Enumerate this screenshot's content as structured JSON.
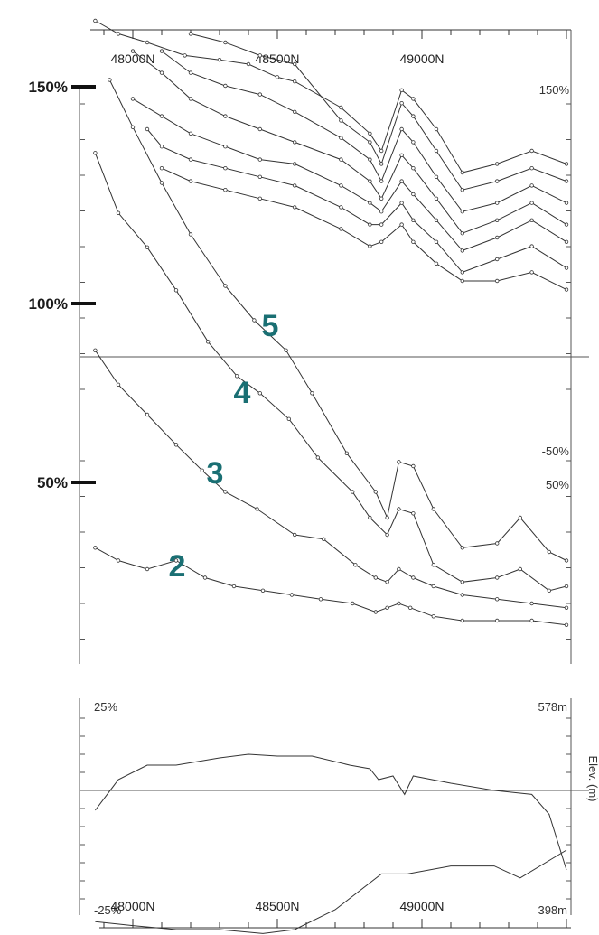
{
  "chart_data": [
    {
      "type": "line",
      "x_ticks": [
        "48000N",
        "48500N",
        "49000N"
      ],
      "left_labels": [
        "150%",
        "100%",
        "50%"
      ],
      "upper_right_labels": [
        "150%",
        "-50%"
      ],
      "lower_right_labels": [
        "50%"
      ],
      "curve_labels": [
        "5",
        "4",
        "3",
        "2"
      ],
      "series": [
        {
          "points": [
            [
              47870,
              165
            ],
            [
              47950,
              162
            ],
            [
              48050,
              160
            ],
            [
              48180,
              157
            ],
            [
              48300,
              156
            ],
            [
              48400,
              155
            ],
            [
              48500,
              152
            ],
            [
              48560,
              151
            ],
            [
              48720,
              145
            ],
            [
              48820,
              139
            ],
            [
              48860,
              135
            ],
            [
              48930,
              149
            ],
            [
              48970,
              147
            ],
            [
              49050,
              140
            ],
            [
              49140,
              130
            ],
            [
              49260,
              132
            ],
            [
              49380,
              135
            ],
            [
              49500,
              132
            ]
          ]
        },
        {
          "points": [
            [
              48200,
              162
            ],
            [
              48320,
              160
            ],
            [
              48440,
              157
            ],
            [
              48560,
              155
            ],
            [
              48720,
              142
            ],
            [
              48820,
              137
            ],
            [
              48860,
              132
            ],
            [
              48930,
              146
            ],
            [
              48970,
              143
            ],
            [
              49050,
              135
            ],
            [
              49140,
              126
            ],
            [
              49260,
              128
            ],
            [
              49380,
              131
            ],
            [
              49500,
              128
            ]
          ]
        },
        {
          "points": [
            [
              48100,
              158
            ],
            [
              48200,
              153
            ],
            [
              48320,
              150
            ],
            [
              48440,
              148
            ],
            [
              48560,
              144
            ],
            [
              48720,
              138
            ],
            [
              48820,
              133
            ],
            [
              48860,
              128
            ],
            [
              48930,
              140
            ],
            [
              48970,
              137
            ],
            [
              49050,
              129
            ],
            [
              49140,
              121
            ],
            [
              49260,
              123
            ],
            [
              49380,
              127
            ],
            [
              49500,
              123
            ]
          ]
        },
        {
          "points": [
            [
              48000,
              158
            ],
            [
              48100,
              153
            ],
            [
              48200,
              147
            ],
            [
              48320,
              143
            ],
            [
              48440,
              140
            ],
            [
              48560,
              137
            ],
            [
              48720,
              133
            ],
            [
              48820,
              128
            ],
            [
              48860,
              124
            ],
            [
              48930,
              134
            ],
            [
              48970,
              131
            ],
            [
              49050,
              124
            ],
            [
              49140,
              116
            ],
            [
              49260,
              119
            ],
            [
              49380,
              123
            ],
            [
              49500,
              118
            ]
          ]
        },
        {
          "points": [
            [
              48000,
              147
            ],
            [
              48100,
              143
            ],
            [
              48200,
              139
            ],
            [
              48320,
              136
            ],
            [
              48440,
              133
            ],
            [
              48560,
              132
            ],
            [
              48720,
              127
            ],
            [
              48820,
              123
            ],
            [
              48860,
              121
            ],
            [
              48930,
              128
            ],
            [
              48970,
              125
            ],
            [
              49050,
              119
            ],
            [
              49140,
              112
            ],
            [
              49260,
              115
            ],
            [
              49380,
              119
            ],
            [
              49500,
              114
            ]
          ]
        },
        {
          "points": [
            [
              48050,
              140
            ],
            [
              48100,
              136
            ],
            [
              48200,
              133
            ],
            [
              48320,
              131
            ],
            [
              48440,
              129
            ],
            [
              48560,
              127
            ],
            [
              48720,
              122
            ],
            [
              48820,
              118
            ],
            [
              48860,
              118
            ],
            [
              48930,
              123
            ],
            [
              48970,
              119
            ],
            [
              49050,
              114
            ],
            [
              49140,
              107
            ],
            [
              49260,
              110
            ],
            [
              49380,
              113
            ],
            [
              49500,
              108
            ]
          ]
        },
        {
          "points": [
            [
              48100,
              131
            ],
            [
              48200,
              128
            ],
            [
              48320,
              126
            ],
            [
              48440,
              124
            ],
            [
              48560,
              122
            ],
            [
              48720,
              117
            ],
            [
              48820,
              113
            ],
            [
              48860,
              114
            ],
            [
              48930,
              118
            ],
            [
              48970,
              114
            ],
            [
              49050,
              109
            ],
            [
              49140,
              105
            ],
            [
              49260,
              105
            ],
            [
              49380,
              107
            ],
            [
              49500,
              103
            ]
          ]
        },
        {
          "name": "5",
          "points": [
            [
              47920,
              144
            ],
            [
              48000,
              133
            ],
            [
              48100,
              120
            ],
            [
              48200,
              108
            ],
            [
              48320,
              96
            ],
            [
              48420,
              88
            ],
            [
              48530,
              81
            ],
            [
              48620,
              71
            ],
            [
              48740,
              57
            ],
            [
              48840,
              48
            ],
            [
              48880,
              42
            ],
            [
              48920,
              55
            ],
            [
              48970,
              54
            ],
            [
              49040,
              44
            ],
            [
              49140,
              35
            ],
            [
              49260,
              36
            ],
            [
              49340,
              42
            ],
            [
              49440,
              34
            ],
            [
              49500,
              32
            ]
          ]
        },
        {
          "name": "4",
          "points": [
            [
              47870,
              127
            ],
            [
              47950,
              113
            ],
            [
              48050,
              105
            ],
            [
              48150,
              95
            ],
            [
              48260,
              83
            ],
            [
              48360,
              75
            ],
            [
              48440,
              71
            ],
            [
              48540,
              65
            ],
            [
              48640,
              56
            ],
            [
              48760,
              48
            ],
            [
              48820,
              42
            ],
            [
              48880,
              38
            ],
            [
              48920,
              44
            ],
            [
              48970,
              43
            ],
            [
              49040,
              31
            ],
            [
              49140,
              27
            ],
            [
              49260,
              28
            ],
            [
              49340,
              30
            ],
            [
              49440,
              25
            ],
            [
              49500,
              26
            ]
          ]
        },
        {
          "name": "3",
          "points": [
            [
              47870,
              81
            ],
            [
              47950,
              73
            ],
            [
              48050,
              66
            ],
            [
              48150,
              59
            ],
            [
              48240,
              53
            ],
            [
              48320,
              48
            ],
            [
              48430,
              44
            ],
            [
              48560,
              38
            ],
            [
              48660,
              37
            ],
            [
              48770,
              31
            ],
            [
              48840,
              28
            ],
            [
              48880,
              27
            ],
            [
              48920,
              30
            ],
            [
              48970,
              28
            ],
            [
              49040,
              26
            ],
            [
              49140,
              24
            ],
            [
              49260,
              23
            ],
            [
              49380,
              22
            ],
            [
              49500,
              21
            ]
          ]
        },
        {
          "name": "2",
          "points": [
            [
              47870,
              35
            ],
            [
              47950,
              32
            ],
            [
              48050,
              30
            ],
            [
              48150,
              32
            ],
            [
              48250,
              28
            ],
            [
              48350,
              26
            ],
            [
              48450,
              25
            ],
            [
              48550,
              24
            ],
            [
              48650,
              23
            ],
            [
              48760,
              22
            ],
            [
              48840,
              20
            ],
            [
              48880,
              21
            ],
            [
              48920,
              22
            ],
            [
              48960,
              21
            ],
            [
              49040,
              19
            ],
            [
              49140,
              18
            ],
            [
              49260,
              18
            ],
            [
              49380,
              18
            ],
            [
              49500,
              17
            ]
          ]
        }
      ]
    },
    {
      "type": "line",
      "x_ticks": [
        "48000N",
        "48500N",
        "49000N"
      ],
      "left_labels": [
        "25%",
        "-25%"
      ],
      "right_labels": [
        "578m",
        "398m"
      ],
      "ylabel_right": "Elev. (m)",
      "series": [
        {
          "points": [
            [
              47870,
              -5
            ],
            [
              47950,
              3
            ],
            [
              48050,
              7
            ],
            [
              48150,
              7
            ],
            [
              48300,
              9
            ],
            [
              48400,
              10
            ],
            [
              48500,
              9.5
            ],
            [
              48620,
              9.5
            ],
            [
              48750,
              7
            ],
            [
              48820,
              6
            ],
            [
              48850,
              3
            ],
            [
              48900,
              4
            ],
            [
              48940,
              -1
            ],
            [
              48970,
              4
            ],
            [
              49100,
              2
            ],
            [
              49250,
              0
            ],
            [
              49380,
              -1
            ],
            [
              49440,
              -6
            ],
            [
              49500,
              -20
            ]
          ]
        },
        {
          "points": [
            [
              47870,
              -33
            ],
            [
              48000,
              -34
            ],
            [
              48150,
              -35
            ],
            [
              48300,
              -35
            ],
            [
              48450,
              -36
            ],
            [
              48560,
              -35
            ],
            [
              48700,
              -30
            ],
            [
              48860,
              -21
            ],
            [
              48950,
              -21
            ],
            [
              49100,
              -19
            ],
            [
              49250,
              -19
            ],
            [
              49340,
              -22
            ],
            [
              49500,
              -15
            ]
          ]
        }
      ]
    }
  ]
}
